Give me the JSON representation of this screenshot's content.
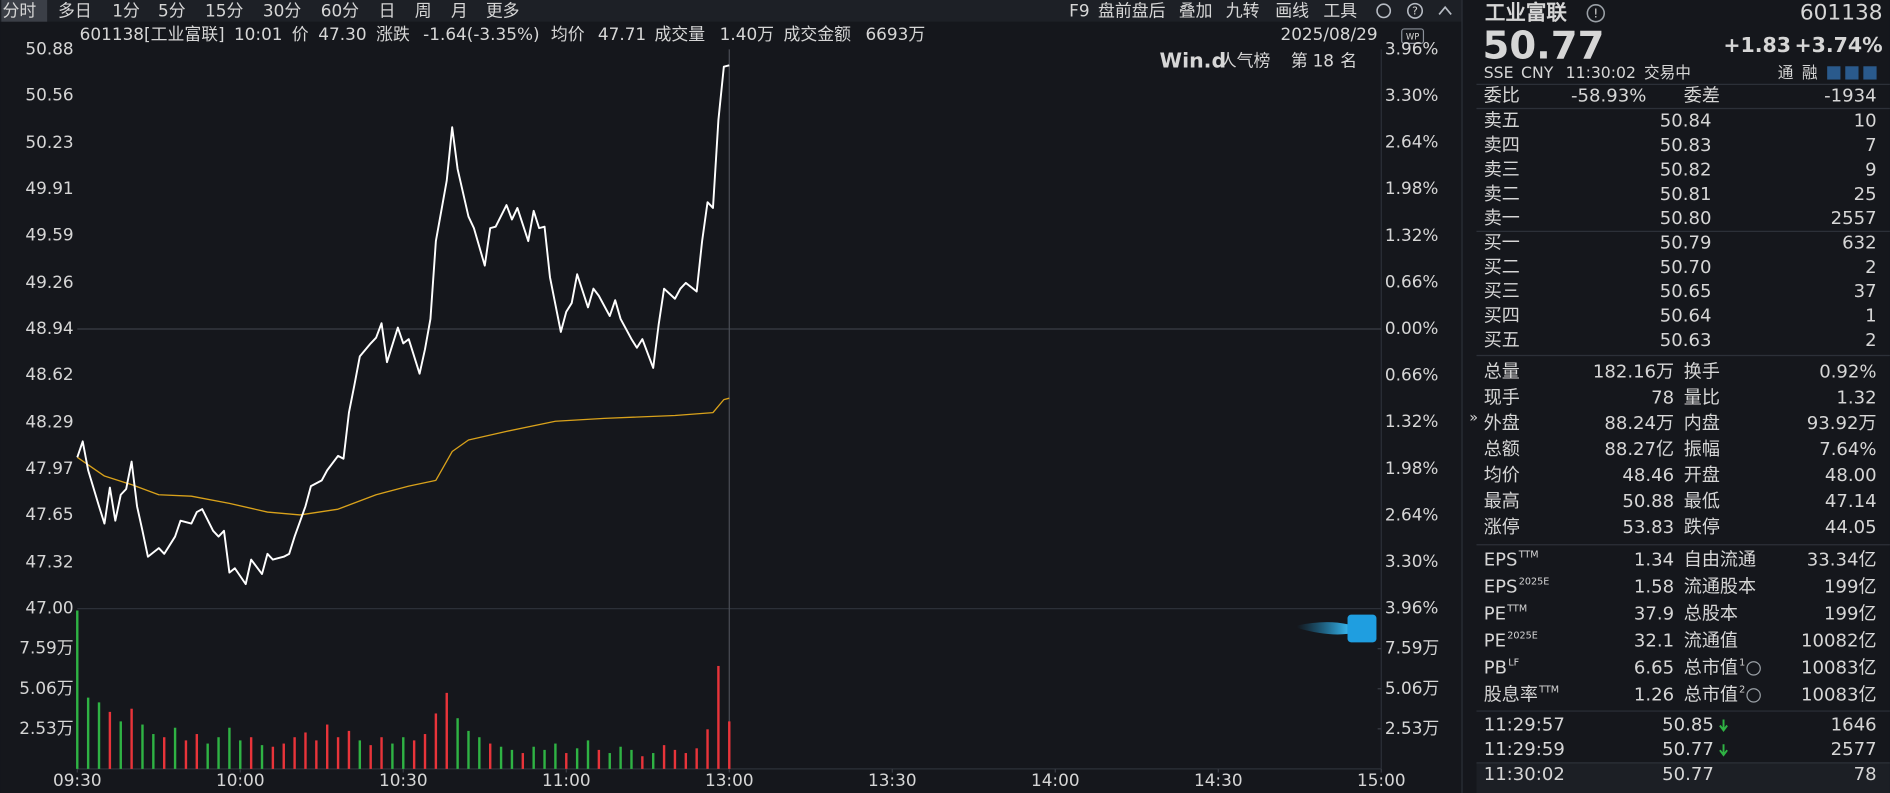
{
  "toolbar": {
    "period_tabs": [
      "分时",
      "多日",
      "1分",
      "5分",
      "15分",
      "30分",
      "60分",
      "日",
      "周",
      "月",
      "更多"
    ],
    "tools": [
      "F9",
      "盘前盘后",
      "叠加",
      "九转",
      "画线",
      "工具"
    ]
  },
  "info": {
    "code_name": "601138[工业富联]",
    "time": "10:01",
    "price_label": "价",
    "price": "47.30",
    "change_label": "涨跌",
    "change": "-1.64(-3.35%)",
    "avg_label": "均价",
    "avg": "47.71",
    "volume_label": "成交量",
    "volume": "1.40万",
    "amount_label": "成交金额",
    "amount": "6693万",
    "date": "2025/08/29"
  },
  "badge": {
    "brand": "Win.d",
    "text": "人气榜",
    "rank_prefix": "第",
    "rank": "18",
    "rank_suffix": "名"
  },
  "chart_data": {
    "type": "line",
    "xlim": [
      0,
      240
    ],
    "xticks": [
      {
        "value": 0,
        "label": "09:30"
      },
      {
        "value": 30,
        "label": "10:00"
      },
      {
        "value": 60,
        "label": "10:30"
      },
      {
        "value": 90,
        "label": "11:00"
      },
      {
        "value": 120,
        "label": "13:00"
      },
      {
        "value": 150,
        "label": "13:30"
      },
      {
        "value": 180,
        "label": "14:00"
      },
      {
        "value": 210,
        "label": "14:30"
      },
      {
        "value": 240,
        "label": "15:00"
      }
    ],
    "ylim": [
      47,
      50.88
    ],
    "yticks": [
      {
        "value": 47,
        "label": "47.00"
      },
      47.32,
      47.65,
      47.97,
      48.29,
      48.62,
      48.94,
      49.26,
      49.59,
      49.91,
      50.23,
      50.56,
      50.88
    ],
    "y2lim": [
      -3.96,
      3.96
    ],
    "y2ticks": [
      {
        "value": -3.96,
        "label": "3.96%"
      },
      {
        "value": -3.3,
        "label": "3.30%"
      },
      {
        "value": -2.64,
        "label": "2.64%"
      },
      {
        "value": -1.98,
        "label": "1.98%"
      },
      {
        "value": -1.32,
        "label": "1.32%"
      },
      {
        "value": -0.66,
        "label": "0.66%"
      },
      {
        "value": 0,
        "label": "0.00%"
      },
      {
        "value": 0.66,
        "label": "0.66%"
      },
      {
        "value": 1.32,
        "label": "1.32%"
      },
      {
        "value": 1.98,
        "label": "1.98%"
      },
      {
        "value": 2.64,
        "label": "2.64%"
      },
      {
        "value": 3.3,
        "label": "3.30%"
      },
      {
        "value": 3.96,
        "label": "3.96%"
      }
    ],
    "series": [
      {
        "color": "#ffffff",
        "x": [
          0,
          1,
          2,
          4,
          5,
          6,
          7,
          8,
          9,
          10,
          11,
          12,
          13,
          15,
          16,
          18,
          19,
          21,
          22,
          23,
          25,
          26,
          27,
          28,
          29,
          31,
          32,
          34,
          35,
          36,
          38,
          39,
          40,
          42,
          43,
          45,
          46,
          48,
          49,
          50,
          51,
          52,
          54,
          55,
          56,
          57,
          59,
          60,
          61,
          63,
          64,
          65,
          66,
          68,
          69,
          70,
          72,
          73,
          75,
          76,
          77,
          79,
          80,
          81,
          83,
          84,
          85,
          86,
          87,
          89,
          90,
          91,
          92,
          94,
          95,
          96,
          98,
          99,
          100,
          102,
          103,
          104,
          106,
          107,
          108,
          110,
          111,
          112,
          114,
          115,
          116,
          117,
          118,
          119,
          120
        ],
        "values": [
          48.05,
          48.16,
          47.96,
          47.71,
          47.59,
          47.84,
          47.61,
          47.79,
          47.83,
          48.02,
          47.71,
          47.54,
          47.36,
          47.42,
          47.38,
          47.5,
          47.61,
          47.59,
          47.67,
          47.69,
          47.54,
          47.5,
          47.54,
          47.25,
          47.28,
          47.17,
          47.34,
          47.24,
          47.38,
          47.34,
          47.36,
          47.38,
          47.5,
          47.71,
          47.85,
          47.89,
          47.96,
          48.06,
          48.04,
          48.36,
          48.55,
          48.75,
          48.84,
          48.88,
          48.98,
          48.71,
          48.95,
          48.84,
          48.87,
          48.63,
          48.8,
          49.01,
          49.55,
          49.97,
          50.34,
          50.05,
          49.72,
          49.64,
          49.38,
          49.64,
          49.65,
          49.8,
          49.7,
          49.78,
          49.55,
          49.76,
          49.64,
          49.65,
          49.3,
          48.92,
          49.06,
          49.12,
          49.32,
          49.09,
          49.22,
          49.17,
          49.03,
          49.14,
          49.01,
          48.87,
          48.81,
          48.87,
          48.67,
          48.97,
          49.22,
          49.15,
          49.22,
          49.26,
          49.2,
          49.55,
          49.82,
          49.78,
          50.39,
          50.76,
          50.77
        ]
      },
      {
        "color": "#d9a21b",
        "x": [
          0,
          5,
          10,
          15,
          21,
          28,
          35,
          41,
          48,
          55,
          61,
          66,
          69,
          72,
          79,
          88,
          97,
          110,
          117,
          119,
          120
        ],
        "values": [
          48.05,
          47.92,
          47.86,
          47.79,
          47.78,
          47.73,
          47.67,
          47.65,
          47.69,
          47.79,
          47.85,
          47.89,
          48.09,
          48.17,
          48.23,
          48.3,
          48.32,
          48.34,
          48.36,
          48.45,
          48.46
        ]
      }
    ],
    "volume": {
      "ylim": [
        0,
        10.12
      ],
      "yticks": [
        {
          "value": 2.53,
          "label": "2.53万"
        },
        {
          "value": 5.06,
          "label": "5.06万"
        },
        {
          "value": 7.59,
          "label": "7.59万"
        }
      ],
      "x": [
        0,
        2,
        4,
        6,
        8,
        10,
        12,
        14,
        16,
        18,
        20,
        22,
        24,
        26,
        28,
        30,
        32,
        34,
        36,
        38,
        40,
        42,
        44,
        46,
        48,
        50,
        52,
        54,
        56,
        58,
        60,
        62,
        64,
        66,
        68,
        70,
        72,
        74,
        76,
        78,
        80,
        82,
        84,
        86,
        88,
        90,
        92,
        94,
        96,
        98,
        100,
        102,
        104,
        106,
        108,
        110,
        112,
        114,
        116,
        118,
        120
      ],
      "values": [
        10.0,
        4.5,
        4.2,
        3.6,
        3.0,
        3.8,
        2.8,
        2.2,
        2.0,
        2.6,
        1.8,
        2.2,
        1.6,
        2.0,
        2.6,
        1.8,
        2.0,
        1.5,
        1.4,
        1.6,
        2.0,
        2.3,
        1.8,
        2.8,
        2.0,
        2.4,
        1.8,
        1.5,
        2.0,
        1.6,
        2.0,
        1.8,
        2.2,
        3.5,
        4.8,
        3.2,
        2.4,
        2.0,
        1.6,
        1.4,
        1.2,
        1.0,
        1.4,
        1.2,
        1.6,
        1.0,
        1.3,
        1.8,
        1.2,
        1.0,
        1.4,
        1.2,
        0.8,
        1.0,
        1.5,
        1.2,
        1.0,
        1.3,
        2.5,
        6.5,
        3.0
      ],
      "colors": [
        "#2fb344",
        "#2fb344",
        "#2fb344",
        "#e8343a",
        "#2fb344",
        "#e8343a",
        "#2fb344",
        "#2fb344",
        "#e8343a",
        "#2fb344",
        "#e8343a",
        "#e8343a",
        "#2fb344",
        "#2fb344",
        "#2fb344",
        "#2fb344",
        "#e8343a",
        "#2fb344",
        "#e8343a",
        "#e8343a",
        "#e8343a",
        "#e8343a",
        "#e8343a",
        "#e8343a",
        "#e8343a",
        "#e8343a",
        "#2fb344",
        "#e8343a",
        "#e8343a",
        "#2fb344",
        "#2fb344",
        "#e8343a",
        "#e8343a",
        "#e8343a",
        "#e8343a",
        "#2fb344",
        "#2fb344",
        "#2fb344",
        "#e8343a",
        "#2fb344",
        "#2fb344",
        "#e8343a",
        "#2fb344",
        "#2fb344",
        "#2fb344",
        "#e8343a",
        "#2fb344",
        "#2fb344",
        "#e8343a",
        "#2fb344",
        "#2fb344",
        "#2fb344",
        "#e8343a",
        "#2fb344",
        "#e8343a",
        "#e8343a",
        "#e8343a",
        "#e8343a",
        "#e8343a",
        "#e8343a",
        "#e8343a"
      ]
    }
  },
  "quote": {
    "name": "工业富联",
    "code": "601138",
    "price": "50.77",
    "change": "+1.83",
    "change_pct": "+3.74%",
    "market": "SSE",
    "currency": "CNY",
    "time": "11:30:02",
    "status": "交易中",
    "tags": [
      "通",
      "融"
    ],
    "order_ratio": {
      "label": "委比",
      "value": "-58.93%",
      "label2": "委差",
      "value2": "-1934"
    },
    "asks": [
      {
        "label": "卖五",
        "price": "50.84",
        "volume": "10"
      },
      {
        "label": "卖四",
        "price": "50.83",
        "volume": "7"
      },
      {
        "label": "卖三",
        "price": "50.82",
        "volume": "9"
      },
      {
        "label": "卖二",
        "price": "50.81",
        "volume": "25"
      },
      {
        "label": "卖一",
        "price": "50.80",
        "volume": "2557"
      }
    ],
    "bids": [
      {
        "label": "买一",
        "price": "50.79",
        "volume": "632"
      },
      {
        "label": "买二",
        "price": "50.70",
        "volume": "2"
      },
      {
        "label": "买三",
        "price": "50.65",
        "volume": "37"
      },
      {
        "label": "买四",
        "price": "50.64",
        "volume": "1"
      },
      {
        "label": "买五",
        "price": "50.63",
        "volume": "2"
      }
    ],
    "stats": [
      {
        "label": "总量",
        "value": "182.16万",
        "label2": "换手",
        "value2": "0.92%"
      },
      {
        "label": "现手",
        "value": "78",
        "label2": "量比",
        "value2": "1.32"
      },
      {
        "label": "外盘",
        "value": "88.24万",
        "color": "#f23b3b",
        "label2": "内盘",
        "value2": "93.92万",
        "color2": "#2fb344"
      },
      {
        "label": "总额",
        "value": "88.27亿",
        "label2": "振幅",
        "value2": "7.64%"
      },
      {
        "label": "均价",
        "value": "48.46",
        "color": "#2fb344",
        "label2": "开盘",
        "value2": "48.00",
        "color2": "#2fb344"
      },
      {
        "label": "最高",
        "value": "50.88",
        "color": "#f23b3b",
        "label2": "最低",
        "value2": "47.14",
        "color2": "#2fb344"
      },
      {
        "label": "涨停",
        "value": "53.83",
        "color": "#f23b3b",
        "label2": "跌停",
        "value2": "44.05",
        "color2": "#2fb344"
      }
    ],
    "fundamentals": [
      {
        "label": "EPS",
        "sup": "TTM",
        "value": "1.34",
        "label2": "自由流通",
        "value2": "33.34亿"
      },
      {
        "label": "EPS",
        "sup": "2025E",
        "value": "1.58",
        "label2": "流通股本",
        "value2": "199亿"
      },
      {
        "label": "PE",
        "sup": "TTM",
        "value": "37.9",
        "label2": "总股本",
        "value2": "199亿"
      },
      {
        "label": "PE",
        "sup": "2025E",
        "value": "32.1",
        "label2": "流通值",
        "value2": "10082亿"
      },
      {
        "label": "PB",
        "sup": "LF",
        "value": "6.65",
        "label2": "总市值",
        "sup2": "1",
        "value2": "10083亿"
      },
      {
        "label": "股息率",
        "sup": "TTM",
        "value": "1.26",
        "label2": "总市值",
        "sup2": "2",
        "value2": "10083亿"
      }
    ],
    "trades": [
      {
        "time": "11:29:57",
        "price": "50.85",
        "volume": "1646",
        "volume_color": "#2fb344"
      },
      {
        "time": "11:29:59",
        "price": "50.77",
        "volume": "2577",
        "volume_color": "#2fb344"
      },
      {
        "time": "11:30:02",
        "price": "50.77",
        "volume": "78",
        "volume_color": "#f23b3b"
      }
    ]
  }
}
